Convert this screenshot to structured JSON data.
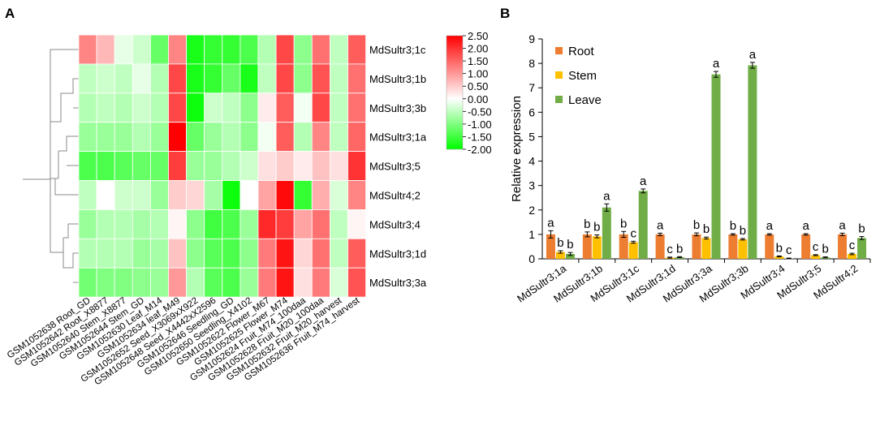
{
  "panels": {
    "a": "A",
    "b": "B"
  },
  "chart_data": [
    {
      "type": "heatmap",
      "rows": [
        "MdSultr3;1c",
        "MdSultr3;1b",
        "MdSultr3;3b",
        "MdSultr3;1a",
        "MdSultr3;5",
        "MdSultr4;2",
        "MdSultr3;4",
        "MdSultr3;1d",
        "MdSultr3;3a"
      ],
      "columns": [
        "GSM1052638 Root_GD",
        "GSM1052642 Root_X8877",
        "GSM1052640 Stem_X8877",
        "GSM1052644 Stem_GD",
        "GSM1052630 Leaf_M14",
        "GSM1052634 leaf_M49",
        "GSM1052652 Seed_X3069xX922",
        "GSM1052648 Seed_X4442xX2596",
        "GSM1052646 Seedling_GD",
        "GSM1052650 Seedling_X4102",
        "GSM1052622 Flower_M67",
        "GSM1052625 Flower_M74",
        "GSM1052624 Fruit_M74_100daa",
        "GSM1052628 Fruit_M20_100daa",
        "GSM1052632 Fruit_M20_harvest",
        "GSM1052636 Fruit_M74_harvest"
      ],
      "values": [
        [
          1.2,
          0.7,
          -0.2,
          -0.4,
          -1.2,
          1.2,
          -1.8,
          -1.6,
          -1.6,
          -1.4,
          -0.6,
          1.8,
          -0.9,
          1.4,
          -0.5,
          1.6
        ],
        [
          -0.5,
          -0.4,
          -0.5,
          -0.2,
          -0.6,
          1.8,
          -1.8,
          -1.6,
          -1.2,
          -1.8,
          -0.5,
          1.8,
          -0.9,
          1.7,
          -0.5,
          1.4
        ],
        [
          -0.6,
          -0.5,
          -0.6,
          -0.4,
          -0.6,
          1.8,
          -1.9,
          -0.4,
          -0.5,
          -0.9,
          0.2,
          1.6,
          -0.1,
          1.8,
          -0.5,
          1.4
        ],
        [
          -0.8,
          -0.8,
          -0.8,
          -0.6,
          -0.8,
          2.5,
          -1.2,
          -0.8,
          -0.6,
          -0.9,
          -0.1,
          1.6,
          -0.6,
          1.2,
          -0.5,
          1.5
        ],
        [
          -1.4,
          -1.4,
          -1.3,
          -1.2,
          -1.2,
          1.9,
          -0.8,
          -0.8,
          -0.6,
          -0.4,
          0.3,
          0.5,
          0.2,
          0.6,
          0.3,
          2.0
        ],
        [
          -0.5,
          0.0,
          -0.4,
          -0.4,
          -0.8,
          0.5,
          0.4,
          -0.7,
          -1.9,
          0.0,
          0.9,
          2.4,
          -1.6,
          0.8,
          -0.3,
          1.2
        ],
        [
          -0.8,
          -0.6,
          -0.6,
          -0.7,
          -0.6,
          0.1,
          -0.9,
          -1.5,
          -1.4,
          -0.8,
          2.1,
          1.9,
          0.9,
          1.4,
          -0.5,
          0.1
        ],
        [
          -0.6,
          -0.6,
          -0.6,
          -0.8,
          -0.7,
          0.6,
          -0.9,
          -1.3,
          -1.4,
          -0.9,
          1.3,
          2.3,
          0.4,
          1.4,
          -0.5,
          1.6
        ],
        [
          -1.1,
          -1.0,
          -1.0,
          -0.9,
          -0.8,
          1.0,
          -0.6,
          -1.3,
          -1.4,
          -0.8,
          1.3,
          2.3,
          0.3,
          1.3,
          -0.3,
          1.7
        ]
      ],
      "color_scale": {
        "min": -2.0,
        "max": 2.5,
        "low_color": "#00ff00",
        "mid_color": "#ffffff",
        "high_color": "#ff0000"
      },
      "colorbar_ticks": [
        "2.50",
        "2.00",
        "1.50",
        "1.00",
        "0.50",
        "0.00",
        "-0.50",
        "-1.00",
        "-1.50",
        "-2.00"
      ],
      "dendrogram": "row clustering tree shown on left"
    },
    {
      "type": "bar",
      "categories": [
        "MdSultr3;1a",
        "MdSultr3;1b",
        "MdSultr3;1c",
        "MdSultr3;1d",
        "MdSultr3;3a",
        "MdSultr3;3b",
        "MdSultr3;4",
        "MdSultr3;5",
        "MdSultr4;2"
      ],
      "series": [
        {
          "name": "Root",
          "color": "#ed7d31",
          "values": [
            1.0,
            1.0,
            1.0,
            1.0,
            1.0,
            1.0,
            1.0,
            1.0,
            1.0
          ],
          "errors": [
            0.15,
            0.1,
            0.12,
            0.05,
            0.06,
            0.03,
            0.03,
            0.03,
            0.05
          ],
          "letters": [
            "a",
            "b",
            "b",
            "a",
            "b",
            "b",
            "a",
            "a",
            "a"
          ]
        },
        {
          "name": "Stem",
          "color": "#ffc000",
          "values": [
            0.28,
            0.92,
            0.68,
            0.05,
            0.85,
            0.8,
            0.1,
            0.15,
            0.2
          ],
          "errors": [
            0.05,
            0.06,
            0.04,
            0.02,
            0.04,
            0.03,
            0.02,
            0.02,
            0.03
          ],
          "letters": [
            "b",
            "b",
            "c",
            "c",
            "b",
            "b",
            "b",
            "c",
            "c"
          ]
        },
        {
          "name": "Leave",
          "color": "#70ad47",
          "values": [
            0.2,
            2.1,
            2.78,
            0.07,
            7.55,
            7.92,
            0.02,
            0.06,
            0.85
          ],
          "errors": [
            0.06,
            0.15,
            0.08,
            0.02,
            0.12,
            0.12,
            0.01,
            0.02,
            0.06
          ],
          "letters": [
            "b",
            "a",
            "a",
            "b",
            "a",
            "a",
            "c",
            "b",
            "b"
          ]
        }
      ],
      "ylabel": "Relative expression",
      "ylim": [
        0,
        9
      ],
      "yticks": [
        0,
        1,
        2,
        3,
        4,
        5,
        6,
        7,
        8,
        9
      ],
      "legend": "top-left"
    }
  ]
}
